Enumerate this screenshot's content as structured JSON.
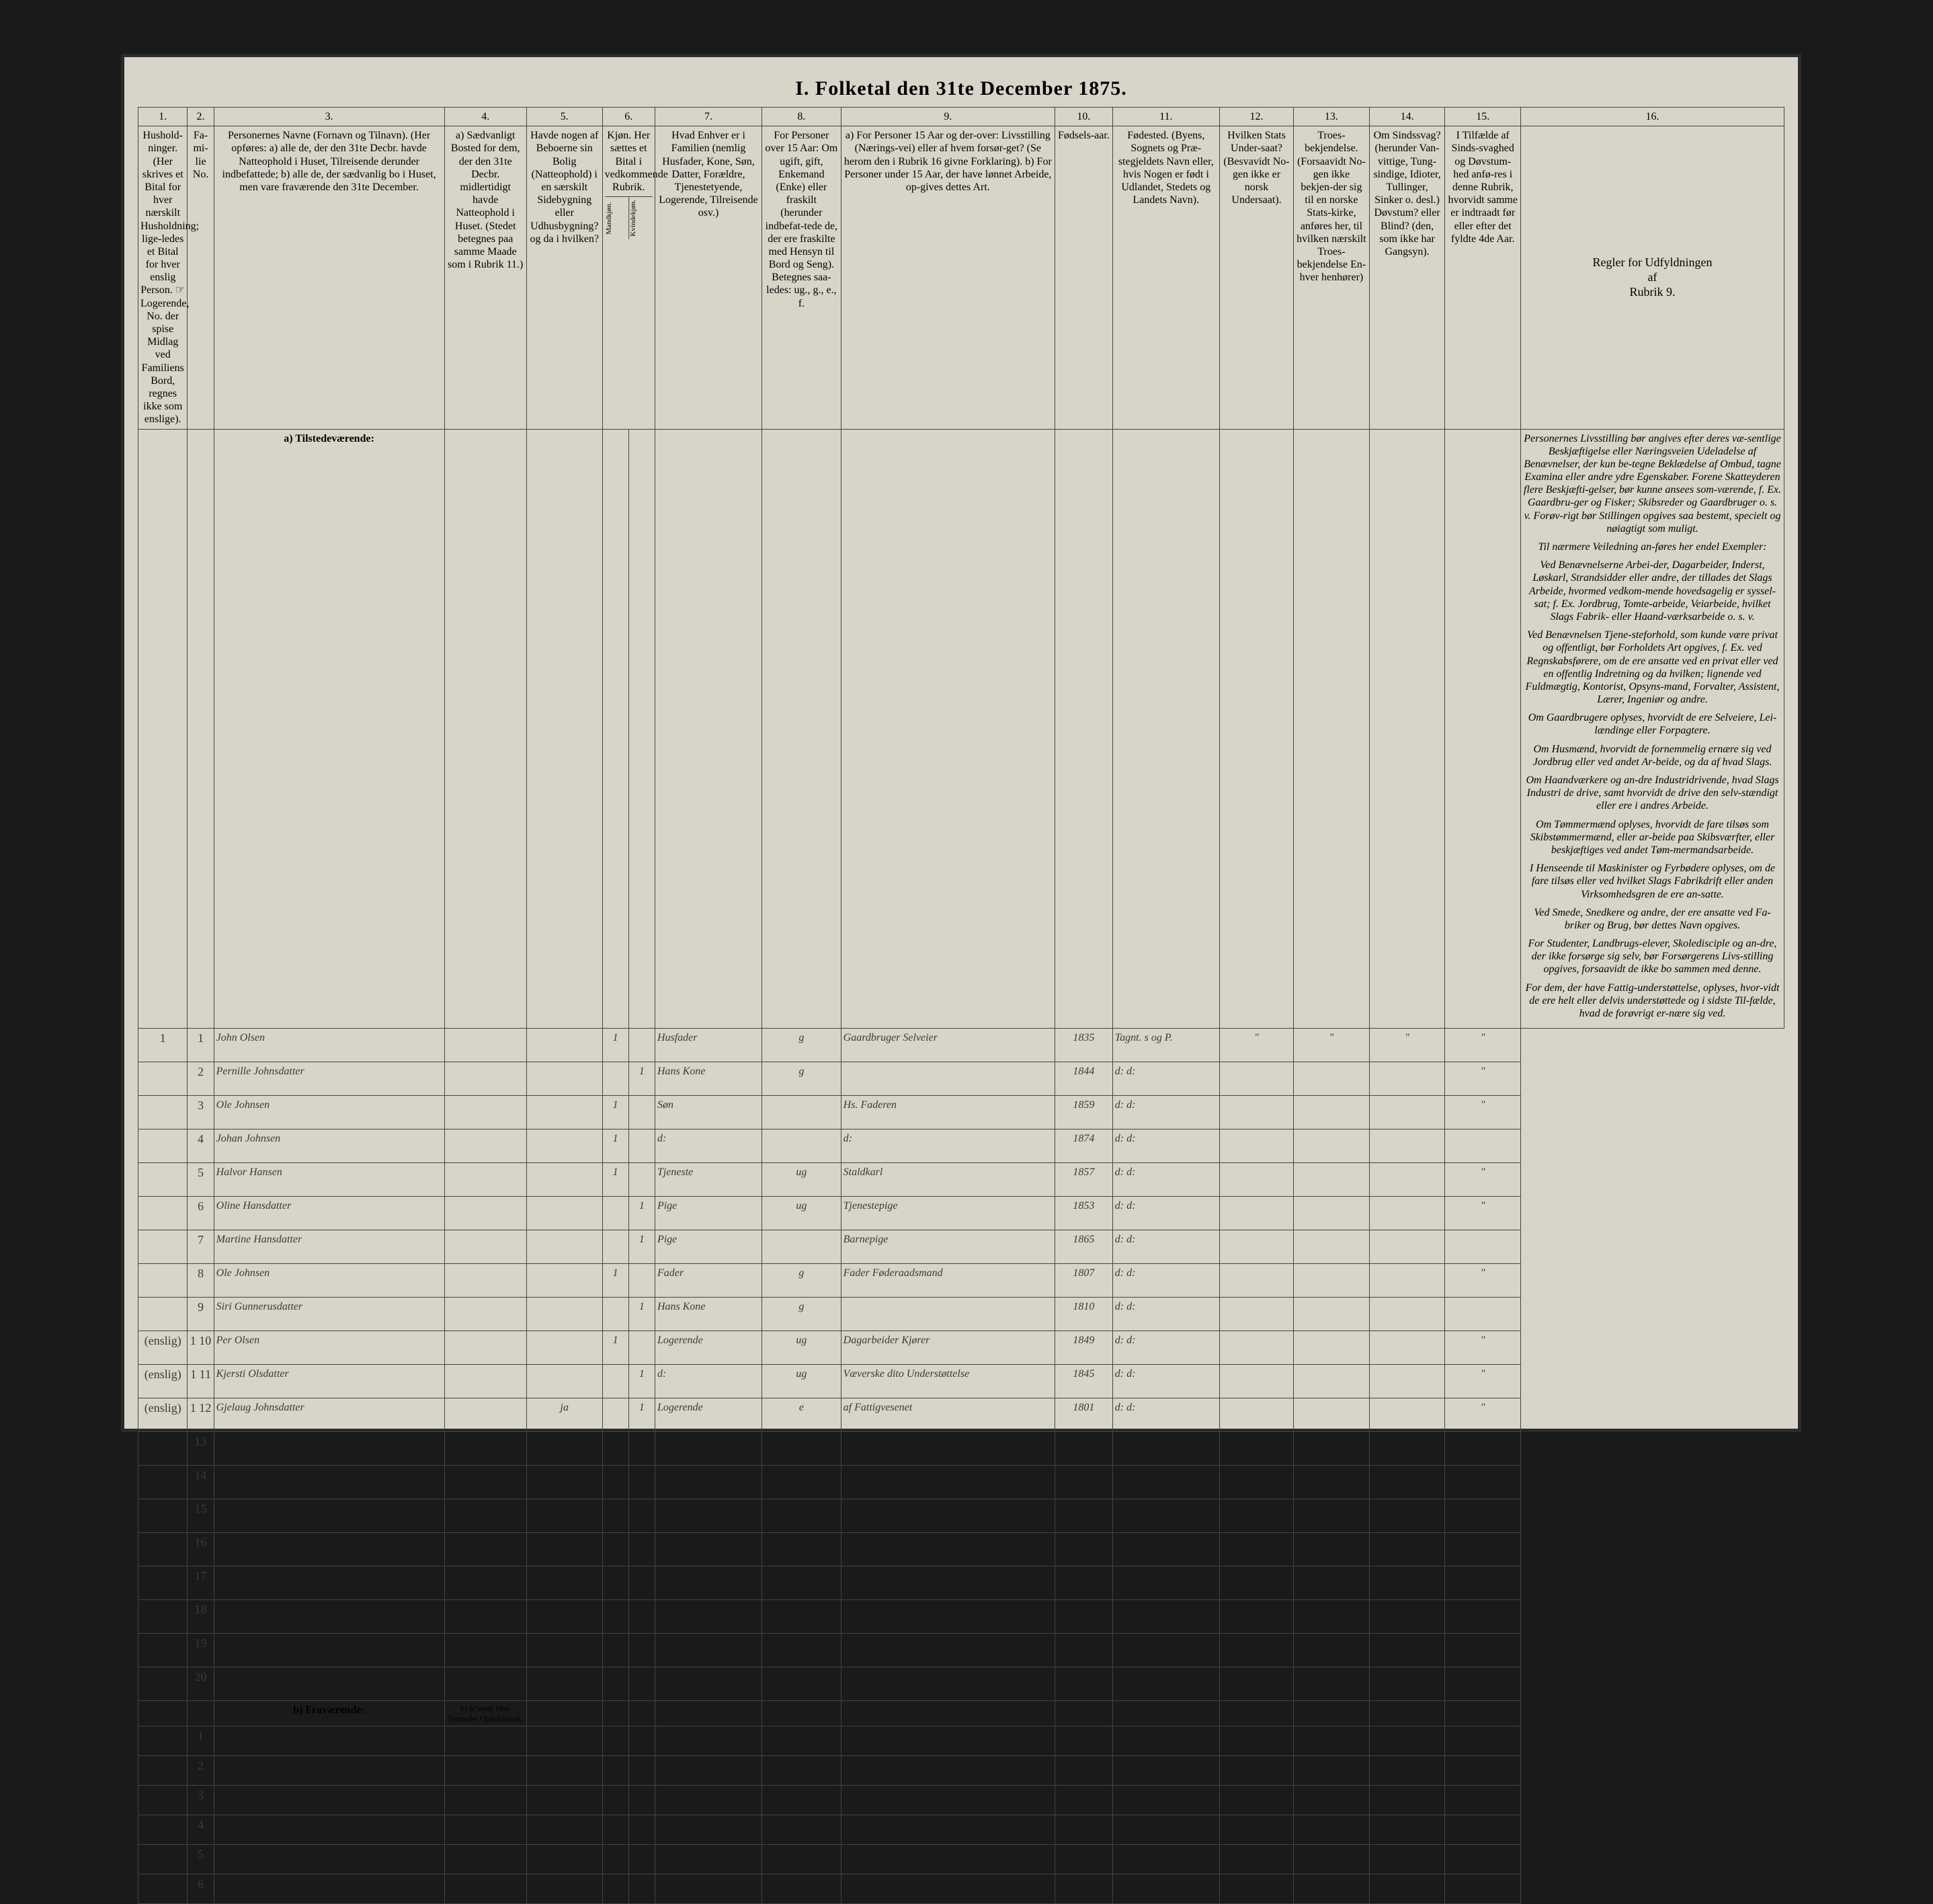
{
  "title": "I. Folketal den 31te December 1875.",
  "columns": {
    "nums": [
      "1.",
      "2.",
      "3.",
      "4.",
      "5.",
      "6.",
      "7.",
      "8.",
      "9.",
      "10.",
      "11.",
      "12.",
      "13.",
      "14.",
      "15.",
      "16."
    ],
    "h1": "Hushold-ninger. (Her skrives et Bital for hver nærskilt Husholdning; lige-ledes et Bital for hver enslig Person. ☞ Logerende, No. der spise Midlag ved Familiens Bord, regnes ikke som enslige).",
    "h2": "Fa-mi-lie No.",
    "h3": "Personernes Navne (Fornavn og Tilnavn).\n(Her opføres:\na) alle de, der den 31te Decbr. havde Natteophold i Huset, Tilreisende derunder indbefattede;\nb) alle de, der sædvanlig bo i Huset, men vare fraværende den 31te December.",
    "h4": "a) Sædvanligt Bosted for dem, der den 31te Decbr. midlertidigt havde Natteophold i Huset. (Stedet betegnes paa samme Maade som i Rubrik 11.)",
    "h5": "Havde nogen af Beboerne sin Bolig (Natteophold) i en særskilt Sidebygning eller Udhusbygning? og da i hvilken?",
    "h6": "Kjøn. Her sættes et Bital i vedkommende Rubrik.",
    "h6a": "Mandkjøn.",
    "h6b": "Kvindekjøn.",
    "h7": "Hvad Enhver er i Familien (nemlig Husfader, Kone, Søn, Datter, Forældre, Tjenestetyende, Logerende, Tilreisende osv.)",
    "h8": "For Personer over 15 Aar: Om ugift, gift, Enkemand (Enke) eller fraskilt (herunder indbefat-tede de, der ere fraskilte med Hensyn til Bord og Seng). Betegnes saa-ledes: ug., g., e., f.",
    "h9": "a) For Personer 15 Aar og der-over: Livsstilling (Nærings-vei) eller af hvem forsør-get? (Se herom den i Rubrik 16 givne Forklaring).\nb) For Personer under 15 Aar, der have lønnet Arbeide, op-gives dettes Art.",
    "h10": "Fødsels-aar.",
    "h11": "Fødested.\n(Byens, Sognets og Præ-stegjeldets Navn eller, hvis Nogen er født i Udlandet, Stedets og Landets Navn).",
    "h12": "Hvilken Stats Under-saat?\n(Besvavidt No-gen ikke er norsk Undersaat).",
    "h13": "Troes-bekjendelse. (Forsaavidt No-gen ikke bekjen-der sig til en norske Stats-kirke, anføres her, til hvilken nærskilt Troes-bekjendelse En-hver henhører)",
    "h14": "Om Sindssvag? (herunder Van-vittige, Tung-sindige, Idioter, Tullinger, Sinker o. desl.) Døvstum? eller Blind? (den, som ikke har Gangsyn).",
    "h15": "I Tilfælde af Sinds-svaghed og Døvstum-hed anfø-res i denne Rubrik, hvorvidt samme er indtraadt før eller efter det fyldte 4de Aar.",
    "h16_title": "Regler for Udfyldningen\naf\nRubrik 9."
  },
  "section_a": "a) Tilstedeværende:",
  "section_b": "b) Fraværende:",
  "section_b_sub": "b) K'sendt eller formodet Opholdssted.",
  "rows": [
    {
      "hh": "1",
      "fam": "1",
      "name": "John Olsen",
      "col4": "",
      "col5": "",
      "m": "1",
      "k": "",
      "rel": "Husfader",
      "ms": "g",
      "occ": "Gaardbruger Selveier",
      "yr": "1835",
      "bp": "Tagnt. s og P.",
      "c12": "\"",
      "c13": "\"",
      "c14": "\"",
      "c15": "\""
    },
    {
      "hh": "",
      "fam": "2",
      "name": "Pernille Johnsdatter",
      "col4": "",
      "col5": "",
      "m": "",
      "k": "1",
      "rel": "Hans Kone",
      "ms": "g",
      "occ": "",
      "yr": "1844",
      "bp": "d:   d:",
      "c12": "",
      "c13": "",
      "c14": "",
      "c15": "\""
    },
    {
      "hh": "",
      "fam": "3",
      "name": "Ole Johnsen",
      "col4": "",
      "col5": "",
      "m": "1",
      "k": "",
      "rel": "Søn",
      "ms": "",
      "occ": "Hs. Faderen",
      "yr": "1859",
      "bp": "d:   d:",
      "c12": "",
      "c13": "",
      "c14": "",
      "c15": "\""
    },
    {
      "hh": "",
      "fam": "4",
      "name": "Johan Johnsen",
      "col4": "",
      "col5": "",
      "m": "1",
      "k": "",
      "rel": "d:",
      "ms": "",
      "occ": "d:",
      "yr": "1874",
      "bp": "d:   d:",
      "c12": "",
      "c13": "",
      "c14": "",
      "c15": ""
    },
    {
      "hh": "",
      "fam": "5",
      "name": "Halvor Hansen",
      "col4": "",
      "col5": "",
      "m": "1",
      "k": "",
      "rel": "Tjeneste",
      "ms": "ug",
      "occ": "Staldkarl",
      "yr": "1857",
      "bp": "d:   d:",
      "c12": "",
      "c13": "",
      "c14": "",
      "c15": "\""
    },
    {
      "hh": "",
      "fam": "6",
      "name": "Oline Hansdatter",
      "col4": "",
      "col5": "",
      "m": "",
      "k": "1",
      "rel": "Pige",
      "ms": "ug",
      "occ": "Tjenestepige",
      "yr": "1853",
      "bp": "d:   d:",
      "c12": "",
      "c13": "",
      "c14": "",
      "c15": "\""
    },
    {
      "hh": "",
      "fam": "7",
      "name": "Martine Hansdatter",
      "col4": "",
      "col5": "",
      "m": "",
      "k": "1",
      "rel": "Pige",
      "ms": "",
      "occ": "Barnepige",
      "yr": "1865",
      "bp": "d:   d:",
      "c12": "",
      "c13": "",
      "c14": "",
      "c15": ""
    },
    {
      "hh": "",
      "fam": "8",
      "name": "Ole Johnsen",
      "col4": "",
      "col5": "",
      "m": "1",
      "k": "",
      "rel": "Fader",
      "ms": "g",
      "occ": "Fader Føderaadsmand",
      "yr": "1807",
      "bp": "d:   d:",
      "c12": "",
      "c13": "",
      "c14": "",
      "c15": "\""
    },
    {
      "hh": "",
      "fam": "9",
      "name": "Siri Gunnerusdatter",
      "col4": "",
      "col5": "",
      "m": "",
      "k": "1",
      "rel": "Hans Kone",
      "ms": "g",
      "occ": "",
      "yr": "1810",
      "bp": "d:   d:",
      "c12": "",
      "c13": "",
      "c14": "",
      "c15": ""
    },
    {
      "hh": "(enslig)",
      "fam": "1  10",
      "name": "Per Olsen",
      "col4": "",
      "col5": "",
      "m": "1",
      "k": "",
      "rel": "Logerende",
      "ms": "ug",
      "occ": "Dagarbeider Kjører",
      "yr": "1849",
      "bp": "d:   d:",
      "c12": "",
      "c13": "",
      "c14": "",
      "c15": "\""
    },
    {
      "hh": "(enslig)",
      "fam": "1  11",
      "name": "Kjersti Olsdatter",
      "col4": "",
      "col5": "",
      "m": "",
      "k": "1",
      "rel": "d:",
      "ms": "ug",
      "occ": "Væverske dito Understøttelse",
      "yr": "1845",
      "bp": "d:   d:",
      "c12": "",
      "c13": "",
      "c14": "",
      "c15": "\""
    },
    {
      "hh": "(enslig)",
      "fam": "1  12",
      "name": "Gjelaug Johnsdatter",
      "col4": "",
      "col5": "ja",
      "m": "",
      "k": "1",
      "rel": "Logerende",
      "ms": "e",
      "occ": "af Fattigvesenet",
      "yr": "1801",
      "bp": "d:   d:",
      "c12": "",
      "c13": "",
      "c14": "",
      "c15": "\""
    }
  ],
  "empty_nums": [
    "13",
    "14",
    "15",
    "16",
    "17",
    "18",
    "19",
    "20"
  ],
  "bottom_nums": [
    "1",
    "2",
    "3",
    "4",
    "5",
    "6"
  ],
  "instructions": {
    "p1": "Personernes Livsstilling bør angives efter deres væ-sentlige Beskjæftigelse eller Næringsveien Udeladelse af Benævnelser, der kun be-tegne Beklædelse af Ombud, tagne Examina eller andre ydre Egenskaber. Forene Skatteyderen flere Beskjæfti-gelser, bør kunne ansees som-værende, f. Ex. Gaardbru-ger og Fisker; Skibsreder og Gaardbruger o. s. v. Forøv-rigt bør Stillingen opgives saa bestemt, specielt og nøiagtigt som muligt.",
    "p2": "Til nærmere Veiledning an-føres her endel Exempler:",
    "p3": "Ved Benævnelserne Arbei-der, Dagarbeider, Inderst, Løskarl, Strandsidder eller andre, der tillades det Slags Arbeide, hvormed vedkom-mende hovedsagelig er syssel-sat; f. Ex. Jordbrug, Tomte-arbeide, Veiarbeide, hvilket Slags Fabrik- eller Haand-værksarbeide o. s. v.",
    "p4": "Ved Benævnelsen Tjene-steforhold, som kunde være privat og offentligt, bør Forholdets Art opgives, f. Ex. ved Regnskabsførere, om de ere ansatte ved en privat eller ved en offentlig Indretning og da hvilken; lignende ved Fuldmægtig, Kontorist, Opsyns-mand, Forvalter, Assistent, Lærer, Ingeniør og andre.",
    "p5": "Om Gaardbrugere oplyses, hvorvidt de ere Selveiere, Lei-lændinge eller Forpagtere.",
    "p6": "Om Husmænd, hvorvidt de fornemmelig ernære sig ved Jordbrug eller ved andet Ar-beide, og da af hvad Slags.",
    "p7": "Om Haandværkere og an-dre Industridrivende, hvad Slags Industri de drive, samt hvorvidt de drive den selv-stændigt eller ere i andres Arbeide.",
    "p8": "Om Tømmermænd oplyses, hvorvidt de fare tilsøs som Skibstømmermænd, eller ar-beide paa Skibsværfter, eller beskjæftiges ved andet Tøm-mermandsarbeide.",
    "p9": "I Henseende til Maskinister og Fyrbødere oplyses, om de fare tilsøs eller ved hvilket Slags Fabrikdrift eller anden Virksomhedsgren de ere an-satte.",
    "p10": "Ved Smede, Snedkere og andre, der ere ansatte ved Fa-briker og Brug, bør dettes Navn opgives.",
    "p11": "For Studenter, Landbrugs-elever, Skoledisciple og an-dre, der ikke forsørge sig selv, bør Forsørgerens Livs-stilling opgives, forsaavidt de ikke bo sammen med denne.",
    "p12": "For dem, der have Fattig-understøttelse, oplyses, hvor-vidt de ere helt eller delvis understøttede og i sidste Til-fælde, hvad de forøvrigt er-nære sig ved."
  },
  "style": {
    "page_bg": "#d8d4c8",
    "outer_bg": "#1a1a1a",
    "border_color": "#444",
    "heavy_border": "#222",
    "ink": "#3a3a32",
    "title_size": 30,
    "header_size": 13,
    "data_size": 22,
    "num_size": 18,
    "instr_size": 15
  }
}
